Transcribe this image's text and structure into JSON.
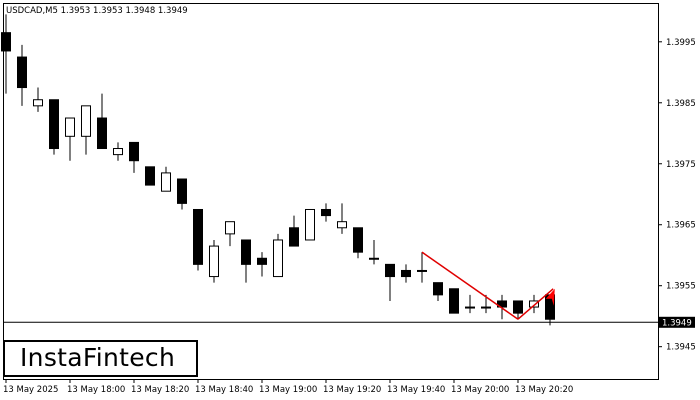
{
  "chart_title": "USDCAD,M5  1.3953 1.3953 1.3948 1.3949",
  "logo_text": "InstaFintech",
  "chart_data": {
    "type": "candlestick",
    "symbol": "USDCAD",
    "timeframe": "M5",
    "ohlc_header": {
      "open": 1.3953,
      "high": 1.3953,
      "low": 1.3948,
      "close": 1.3949
    },
    "current_price": 1.3949,
    "current_price_label": "1.3949",
    "ylim": [
      1.39397,
      1.40012
    ],
    "y_ticks": [
      {
        "value": 1.3995,
        "label": "1.3995"
      },
      {
        "value": 1.3985,
        "label": "1.3985"
      },
      {
        "value": 1.3975,
        "label": "1.3975"
      },
      {
        "value": 1.3965,
        "label": "1.3965"
      },
      {
        "value": 1.3955,
        "label": "1.3955"
      },
      {
        "value": 1.3945,
        "label": "1.3945"
      }
    ],
    "x_ticks": [
      {
        "index": 0,
        "label": "13 May 2025"
      },
      {
        "index": 4,
        "label": "13 May 18:00"
      },
      {
        "index": 8,
        "label": "13 May 18:20"
      },
      {
        "index": 12,
        "label": "13 May 18:40"
      },
      {
        "index": 16,
        "label": "13 May 19:00"
      },
      {
        "index": 20,
        "label": "13 May 19:20"
      },
      {
        "index": 24,
        "label": "13 May 19:40"
      },
      {
        "index": 28,
        "label": "13 May 20:00"
      },
      {
        "index": 32,
        "label": "13 May 20:20"
      }
    ],
    "candles": [
      {
        "o": 1.39965,
        "h": 1.39995,
        "l": 1.39865,
        "c": 1.39935
      },
      {
        "o": 1.39925,
        "h": 1.39945,
        "l": 1.39845,
        "c": 1.39875
      },
      {
        "o": 1.39845,
        "h": 1.39875,
        "l": 1.39835,
        "c": 1.39855
      },
      {
        "o": 1.39855,
        "h": 1.39855,
        "l": 1.39765,
        "c": 1.39775
      },
      {
        "o": 1.39795,
        "h": 1.39825,
        "l": 1.39755,
        "c": 1.39825
      },
      {
        "o": 1.39795,
        "h": 1.39845,
        "l": 1.39765,
        "c": 1.39845
      },
      {
        "o": 1.39825,
        "h": 1.39865,
        "l": 1.39775,
        "c": 1.39775
      },
      {
        "o": 1.39765,
        "h": 1.39785,
        "l": 1.39755,
        "c": 1.39775
      },
      {
        "o": 1.39785,
        "h": 1.39785,
        "l": 1.39735,
        "c": 1.39755
      },
      {
        "o": 1.39745,
        "h": 1.39745,
        "l": 1.39715,
        "c": 1.39715
      },
      {
        "o": 1.39705,
        "h": 1.39745,
        "l": 1.39705,
        "c": 1.39735
      },
      {
        "o": 1.39725,
        "h": 1.39725,
        "l": 1.39675,
        "c": 1.39685
      },
      {
        "o": 1.39675,
        "h": 1.39675,
        "l": 1.39575,
        "c": 1.39585
      },
      {
        "o": 1.39565,
        "h": 1.39625,
        "l": 1.39555,
        "c": 1.39615
      },
      {
        "o": 1.39635,
        "h": 1.39655,
        "l": 1.39615,
        "c": 1.39655
      },
      {
        "o": 1.39625,
        "h": 1.39625,
        "l": 1.39555,
        "c": 1.39585
      },
      {
        "o": 1.39595,
        "h": 1.39605,
        "l": 1.39565,
        "c": 1.39585
      },
      {
        "o": 1.39565,
        "h": 1.39635,
        "l": 1.39565,
        "c": 1.39625
      },
      {
        "o": 1.39645,
        "h": 1.39665,
        "l": 1.39615,
        "c": 1.39615
      },
      {
        "o": 1.39625,
        "h": 1.39675,
        "l": 1.39625,
        "c": 1.39675
      },
      {
        "o": 1.39675,
        "h": 1.39685,
        "l": 1.39655,
        "c": 1.39665
      },
      {
        "o": 1.39645,
        "h": 1.39685,
        "l": 1.39635,
        "c": 1.39655
      },
      {
        "o": 1.39645,
        "h": 1.39645,
        "l": 1.39595,
        "c": 1.39605
      },
      {
        "o": 1.39595,
        "h": 1.39625,
        "l": 1.39585,
        "c": 1.39595
      },
      {
        "o": 1.39585,
        "h": 1.39585,
        "l": 1.39525,
        "c": 1.39565
      },
      {
        "o": 1.39575,
        "h": 1.39585,
        "l": 1.39555,
        "c": 1.39565
      },
      {
        "o": 1.39575,
        "h": 1.39605,
        "l": 1.39555,
        "c": 1.39575
      },
      {
        "o": 1.39555,
        "h": 1.39555,
        "l": 1.39525,
        "c": 1.39535
      },
      {
        "o": 1.39545,
        "h": 1.39545,
        "l": 1.39505,
        "c": 1.39505
      },
      {
        "o": 1.39515,
        "h": 1.39535,
        "l": 1.39505,
        "c": 1.39515
      },
      {
        "o": 1.39515,
        "h": 1.39535,
        "l": 1.39505,
        "c": 1.39515
      },
      {
        "o": 1.39525,
        "h": 1.39535,
        "l": 1.39495,
        "c": 1.39515
      },
      {
        "o": 1.39525,
        "h": 1.39525,
        "l": 1.39495,
        "c": 1.39505
      },
      {
        "o": 1.39515,
        "h": 1.39535,
        "l": 1.39505,
        "c": 1.39525
      },
      {
        "o": 1.39535,
        "h": 1.39535,
        "l": 1.39485,
        "c": 1.39495
      }
    ],
    "pattern_lines": [
      {
        "from": [
          26,
          1.39605
        ],
        "to": [
          32,
          1.39495
        ],
        "color": "#e00000"
      },
      {
        "from": [
          32,
          1.39495
        ],
        "to": [
          34.2,
          1.39545
        ],
        "color": "#e00000"
      }
    ],
    "pattern_arrow": {
      "at": [
        34.3,
        1.39545
      ],
      "color": "#ff0000"
    },
    "grid": false,
    "colors": {
      "bull": "#ffffff",
      "bear": "#000000",
      "axis": "#000000",
      "pattern": "#ff0000"
    }
  }
}
